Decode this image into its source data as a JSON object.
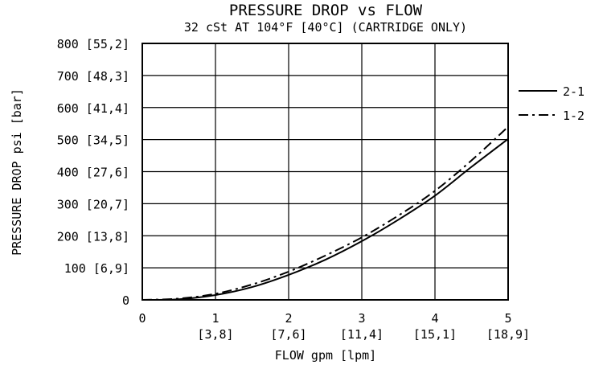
{
  "chart_data": {
    "type": "line",
    "title": "PRESSURE DROP vs FLOW",
    "subtitle": "32 cSt AT 104°F [40°C] (CARTRIDGE ONLY)",
    "xlabel": "FLOW gpm [lpm]",
    "ylabel": "PRESSURE DROP psi [bar]",
    "xlim": [
      0,
      5
    ],
    "ylim": [
      0,
      800
    ],
    "grid": true,
    "legend_position": "right",
    "x_ticks": [
      {
        "value": 0,
        "label": "0",
        "sub": ""
      },
      {
        "value": 1,
        "label": "1",
        "sub": "[3,8]"
      },
      {
        "value": 2,
        "label": "2",
        "sub": "[7,6]"
      },
      {
        "value": 3,
        "label": "3",
        "sub": "[11,4]"
      },
      {
        "value": 4,
        "label": "4",
        "sub": "[15,1]"
      },
      {
        "value": 5,
        "label": "5",
        "sub": "[18,9]"
      }
    ],
    "y_ticks": [
      {
        "value": 0,
        "label": "0"
      },
      {
        "value": 100,
        "label": "100 [6,9]"
      },
      {
        "value": 200,
        "label": "200 [13,8]"
      },
      {
        "value": 300,
        "label": "300 [20,7]"
      },
      {
        "value": 400,
        "label": "400 [27,6]"
      },
      {
        "value": 500,
        "label": "500 [34,5]"
      },
      {
        "value": 600,
        "label": "600 [41,4]"
      },
      {
        "value": 700,
        "label": "700 [48,3]"
      },
      {
        "value": 800,
        "label": "800 [55,2]"
      }
    ],
    "series": [
      {
        "name": "2-1",
        "style": "solid",
        "x": [
          0,
          0.5,
          1.0,
          1.5,
          2.0,
          2.5,
          3.0,
          3.5,
          4.0,
          4.5,
          5.0
        ],
        "y": [
          0,
          2,
          15,
          40,
          78,
          125,
          183,
          250,
          325,
          415,
          502
        ]
      },
      {
        "name": "1-2",
        "style": "dashdot",
        "x": [
          0,
          0.5,
          1.0,
          1.5,
          2.0,
          2.5,
          3.0,
          3.5,
          4.0,
          4.5,
          5.0
        ],
        "y": [
          0,
          4,
          19,
          48,
          88,
          138,
          195,
          263,
          340,
          435,
          540
        ]
      }
    ]
  }
}
